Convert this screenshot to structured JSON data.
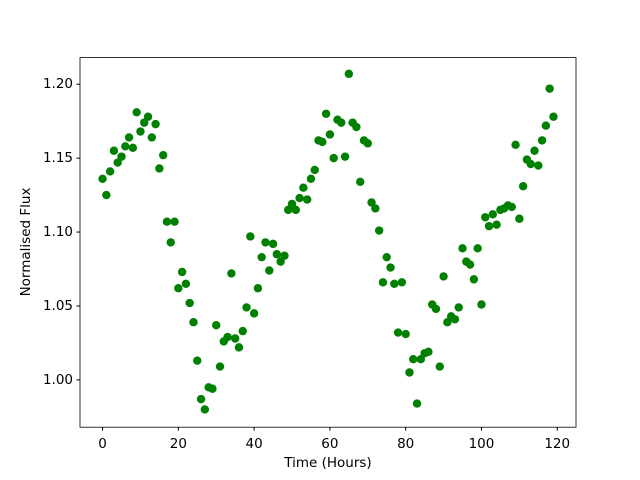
{
  "chart_data": {
    "type": "scatter",
    "x_label": "Time (Hours)",
    "y_label": "Normalised Flux",
    "color": "#008000",
    "xlim": [
      -5.95,
      124.95
    ],
    "ylim": [
      0.968,
      1.218
    ],
    "xticks": [
      0,
      20,
      40,
      60,
      80,
      100,
      120
    ],
    "yticks": [
      {
        "value": 1.0,
        "label": "1.00"
      },
      1.05,
      {
        "value": 1.1,
        "label": "1.10"
      },
      1.15,
      {
        "value": 1.2,
        "label": "1.20"
      }
    ],
    "grid": false,
    "x": [
      0,
      1,
      2,
      3,
      4,
      5,
      6,
      7,
      8,
      9,
      10,
      11,
      12,
      13,
      14,
      15,
      16,
      17,
      18,
      19,
      20,
      21,
      22,
      23,
      24,
      25,
      26,
      27,
      28,
      29,
      30,
      31,
      32,
      33,
      34,
      35,
      36,
      37,
      38,
      39,
      40,
      41,
      42,
      43,
      44,
      45,
      46,
      47,
      48,
      49,
      50,
      51,
      52,
      53,
      54,
      55,
      56,
      57,
      58,
      59,
      60,
      61,
      62,
      63,
      64,
      65,
      66,
      67,
      68,
      69,
      70,
      71,
      72,
      73,
      74,
      75,
      76,
      77,
      78,
      79,
      80,
      81,
      82,
      83,
      84,
      85,
      86,
      87,
      88,
      89,
      90,
      91,
      92,
      93,
      94,
      95,
      96,
      97,
      98,
      99,
      100,
      101,
      102,
      103,
      104,
      105,
      106,
      107,
      108,
      109,
      110,
      111,
      112,
      113,
      114,
      115,
      116,
      117,
      118,
      119
    ],
    "y": [
      1.136,
      1.125,
      1.141,
      1.155,
      1.147,
      1.151,
      1.158,
      1.164,
      1.157,
      1.181,
      1.168,
      1.174,
      1.178,
      1.164,
      1.173,
      1.143,
      1.152,
      1.107,
      1.093,
      1.107,
      1.062,
      1.073,
      1.065,
      1.052,
      1.039,
      1.013,
      0.987,
      0.98,
      0.995,
      0.994,
      1.037,
      1.009,
      1.026,
      1.029,
      1.072,
      1.028,
      1.022,
      1.033,
      1.049,
      1.097,
      1.045,
      1.062,
      1.083,
      1.093,
      1.074,
      1.092,
      1.085,
      1.08,
      1.084,
      1.115,
      1.119,
      1.115,
      1.123,
      1.13,
      1.122,
      1.136,
      1.142,
      1.162,
      1.161,
      1.18,
      1.166,
      1.15,
      1.176,
      1.174,
      1.151,
      1.207,
      1.174,
      1.171,
      1.134,
      1.162,
      1.16,
      1.12,
      1.116,
      1.101,
      1.066,
      1.083,
      1.076,
      1.065,
      1.032,
      1.066,
      1.031,
      1.005,
      1.014,
      0.984,
      1.014,
      1.018,
      1.019,
      1.051,
      1.048,
      1.009,
      1.07,
      1.039,
      1.043,
      1.041,
      1.049,
      1.089,
      1.08,
      1.078,
      1.068,
      1.089,
      1.051,
      1.11,
      1.104,
      1.112,
      1.105,
      1.115,
      1.116,
      1.118,
      1.117,
      1.159,
      1.109,
      1.131,
      1.149,
      1.146,
      1.155,
      1.145,
      1.162,
      1.172,
      1.197,
      1.178
    ]
  }
}
